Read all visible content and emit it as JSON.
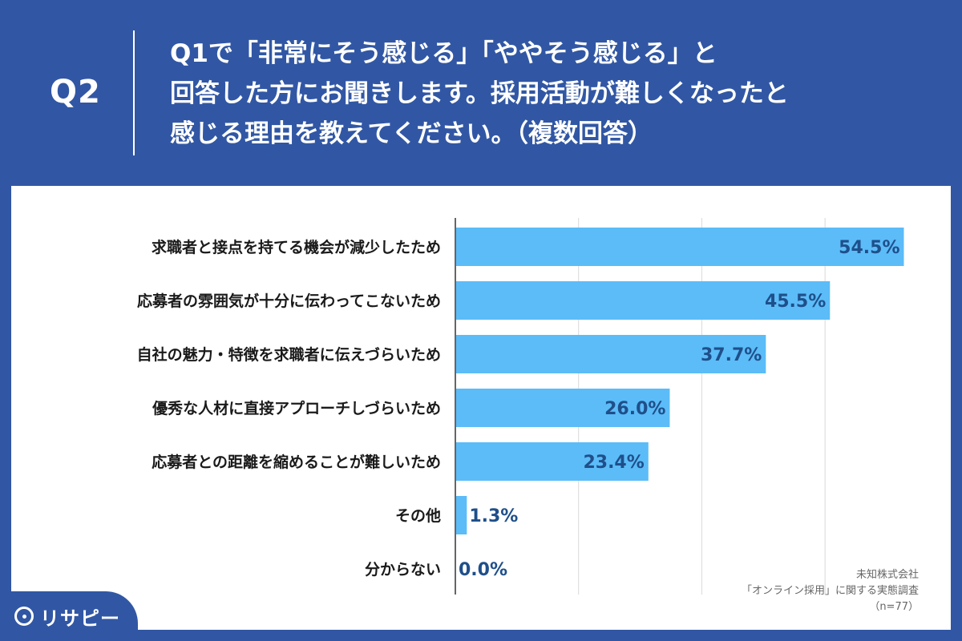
{
  "header": {
    "q_label": "Q2",
    "question_lines": [
      "Q1で「非常にそう感じる」「ややそう感じる」と",
      "回答した方にお聞きします。採用活動が難しくなったと",
      "感じる理由を教えてください。（複数回答）"
    ]
  },
  "source": {
    "company": "未知株式会社",
    "survey": "「オンライン採用」に関する実態調査",
    "n": "（n=77）"
  },
  "logo": {
    "text": "リサピー",
    "icon": "pin-icon"
  },
  "colors": {
    "bar": "#5bbcf8",
    "background": "#3157a4",
    "value_text": "#1f4f8a"
  },
  "chart_data": {
    "type": "bar",
    "orientation": "horizontal",
    "categories": [
      "求職者と接点を持てる機会が減少したため",
      "応募者の雰囲気が十分に伝わってこないため",
      "自社の魅力・特徴を求職者に伝えづらいため",
      "優秀な人材に直接アプローチしづらいため",
      "応募者との距離を縮めることが難しいため",
      "その他",
      "分からない"
    ],
    "values": [
      54.5,
      45.5,
      37.7,
      26.0,
      23.4,
      1.3,
      0.0
    ],
    "value_labels": [
      "54.5%",
      "45.5%",
      "37.7%",
      "26.0%",
      "23.4%",
      "1.3%",
      "0.0%"
    ],
    "xlim": [
      0,
      60
    ],
    "grid": true,
    "title": "",
    "xlabel": "",
    "ylabel": ""
  }
}
